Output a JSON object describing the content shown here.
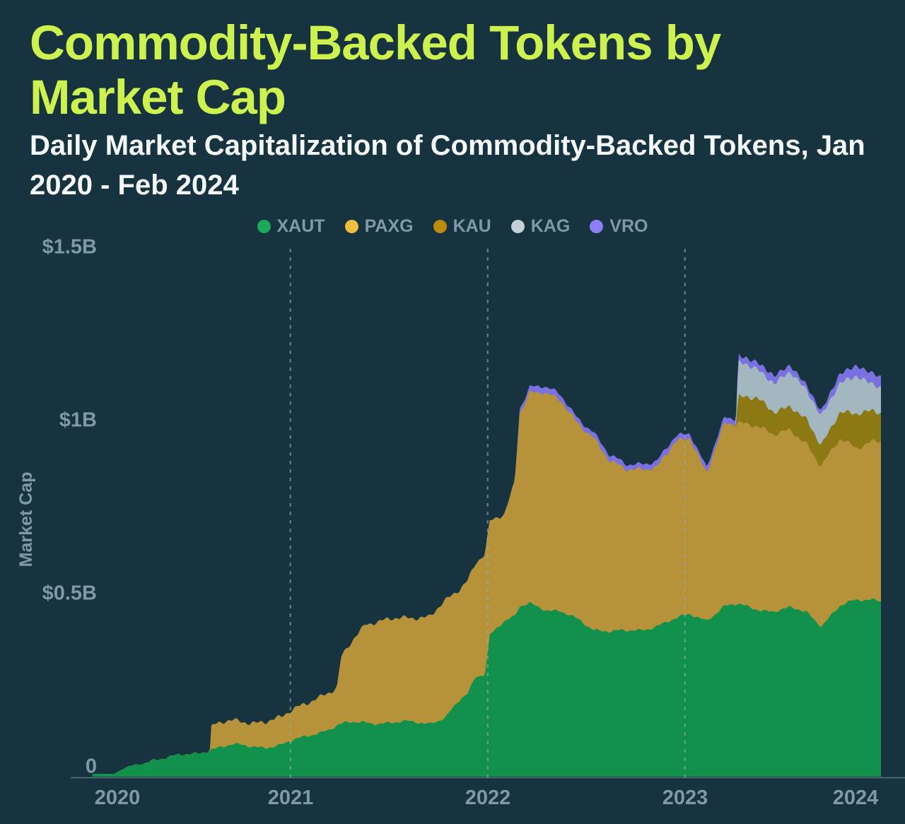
{
  "header": {
    "title": "Commodity-Backed Tokens by Market Cap",
    "subtitle": "Daily Market Capitalization of Commodity-Backed Tokens, Jan 2020 - Feb 2024",
    "title_color": "#cdf24f",
    "subtitle_color": "#f4f8f9"
  },
  "page": {
    "background": "#16333f",
    "axis_text_color": "#8199a5",
    "axis_line_color": "#5d737e",
    "gridline_color": "#9aaab2"
  },
  "chart_data": {
    "type": "area",
    "stacked": true,
    "title": "Commodity-Backed Tokens by Market Cap",
    "subtitle": "Daily Market Capitalization of Commodity-Backed Tokens, Jan 2020 - Feb 2024",
    "xlabel": "",
    "ylabel": "Market Cap",
    "ylim": [
      0,
      1500
    ],
    "x_range": [
      "2020-01-01",
      "2024-02-29"
    ],
    "grid": "vertical-dashed",
    "gridline_years": [
      2021,
      2022,
      2023
    ],
    "legend_position": "top",
    "y_ticks": [
      {
        "label": "$1.5B",
        "value": 1500
      },
      {
        "label": "$1B",
        "value": 1000
      },
      {
        "label": "$0.5B",
        "value": 500
      },
      {
        "label": "0",
        "value": 0
      }
    ],
    "x_ticks": [
      {
        "label": "2020",
        "year": 2020
      },
      {
        "label": "2021",
        "year": 2021
      },
      {
        "label": "2022",
        "year": 2022
      },
      {
        "label": "2023",
        "year": 2023
      },
      {
        "label": "2024",
        "year": 2024
      }
    ],
    "series": [
      {
        "name": "XAUT",
        "color": "#11914b",
        "legend_color": "#1ca95a"
      },
      {
        "name": "PAXG",
        "color": "#b6933a",
        "legend_color": "#edbe40"
      },
      {
        "name": "KAU",
        "color": "#8c7913",
        "legend_color": "#bb8d0e"
      },
      {
        "name": "KAG",
        "color": "#a3b7c0",
        "legend_color": "#c2d2d8"
      },
      {
        "name": "VRO",
        "color": "#7a70e0",
        "legend_color": "#8d80f5"
      }
    ],
    "values_unit": "USD millions",
    "values_order": [
      "XAUT",
      "PAXG",
      "KAU",
      "KAG",
      "VRO"
    ],
    "points": [
      {
        "date": "2020-01-01",
        "values": [
          0,
          0,
          0,
          0,
          0
        ]
      },
      {
        "date": "2020-02-10",
        "values": [
          0,
          0,
          0,
          0,
          0
        ]
      },
      {
        "date": "2020-03-01",
        "values": [
          16,
          0,
          0,
          0,
          0
        ]
      },
      {
        "date": "2020-04-01",
        "values": [
          30,
          0,
          0,
          0,
          0
        ]
      },
      {
        "date": "2020-04-20",
        "values": [
          42,
          0,
          0,
          0,
          0
        ]
      },
      {
        "date": "2020-05-15",
        "values": [
          47,
          0,
          0,
          0,
          0
        ]
      },
      {
        "date": "2020-06-15",
        "values": [
          52,
          0,
          0,
          0,
          0
        ]
      },
      {
        "date": "2020-07-15",
        "values": [
          60,
          0,
          0,
          0,
          0
        ]
      },
      {
        "date": "2020-08-05",
        "values": [
          72,
          0,
          0,
          0,
          0
        ]
      },
      {
        "date": "2020-08-08",
        "values": [
          74,
          65,
          0,
          0,
          0
        ]
      },
      {
        "date": "2020-09-15",
        "values": [
          82,
          70,
          0,
          0,
          0
        ]
      },
      {
        "date": "2020-10-15",
        "values": [
          80,
          70,
          0,
          0,
          0
        ]
      },
      {
        "date": "2020-11-15",
        "values": [
          79,
          72,
          0,
          0,
          0
        ]
      },
      {
        "date": "2020-12-15",
        "values": [
          82,
          78,
          0,
          0,
          0
        ]
      },
      {
        "date": "2021-01-15",
        "values": [
          100,
          95,
          0,
          0,
          0
        ]
      },
      {
        "date": "2021-02-15",
        "values": [
          118,
          100,
          0,
          0,
          0
        ]
      },
      {
        "date": "2021-03-15",
        "values": [
          130,
          103,
          0,
          0,
          0
        ]
      },
      {
        "date": "2021-03-28",
        "values": [
          138,
          105,
          0,
          0,
          0
        ]
      },
      {
        "date": "2021-04-05",
        "values": [
          142,
          192,
          0,
          0,
          0
        ]
      },
      {
        "date": "2021-05-01",
        "values": [
          148,
          250,
          0,
          0,
          0
        ]
      },
      {
        "date": "2021-05-20",
        "values": [
          150,
          285,
          0,
          0,
          0
        ]
      },
      {
        "date": "2021-06-15",
        "values": [
          148,
          292,
          0,
          0,
          0
        ]
      },
      {
        "date": "2021-07-15",
        "values": [
          146,
          300,
          0,
          0,
          0
        ]
      },
      {
        "date": "2021-08-15",
        "values": [
          150,
          302,
          0,
          0,
          0
        ]
      },
      {
        "date": "2021-09-15",
        "values": [
          148,
          308,
          0,
          0,
          0
        ]
      },
      {
        "date": "2021-10-15",
        "values": [
          162,
          335,
          0,
          0,
          0
        ]
      },
      {
        "date": "2021-11-10",
        "values": [
          210,
          320,
          0,
          0,
          0
        ]
      },
      {
        "date": "2021-11-25",
        "values": [
          230,
          330,
          0,
          0,
          0
        ]
      },
      {
        "date": "2021-12-10",
        "values": [
          282,
          332,
          0,
          0,
          0
        ]
      },
      {
        "date": "2021-12-27",
        "values": [
          292,
          345,
          0,
          0,
          0
        ]
      },
      {
        "date": "2022-01-05",
        "values": [
          405,
          325,
          0,
          0,
          0
        ]
      },
      {
        "date": "2022-02-01",
        "values": [
          440,
          305,
          0,
          0,
          0
        ]
      },
      {
        "date": "2022-02-20",
        "values": [
          450,
          390,
          0,
          0,
          0
        ]
      },
      {
        "date": "2022-03-01",
        "values": [
          480,
          560,
          0,
          0,
          16
        ]
      },
      {
        "date": "2022-03-20",
        "values": [
          495,
          610,
          0,
          0,
          18
        ]
      },
      {
        "date": "2022-04-15",
        "values": [
          478,
          625,
          0,
          0,
          17
        ]
      },
      {
        "date": "2022-05-15",
        "values": [
          467,
          608,
          0,
          0,
          16
        ]
      },
      {
        "date": "2022-06-15",
        "values": [
          446,
          570,
          0,
          0,
          16
        ]
      },
      {
        "date": "2022-07-15",
        "values": [
          420,
          555,
          0,
          0,
          16
        ]
      },
      {
        "date": "2022-08-15",
        "values": [
          412,
          487,
          0,
          0,
          16
        ]
      },
      {
        "date": "2022-09-15",
        "values": [
          410,
          468,
          0,
          0,
          16
        ]
      },
      {
        "date": "2022-10-15",
        "values": [
          416,
          468,
          0,
          0,
          16
        ]
      },
      {
        "date": "2022-11-10",
        "values": [
          430,
          455,
          0,
          0,
          16
        ]
      },
      {
        "date": "2022-12-15",
        "values": [
          446,
          510,
          0,
          0,
          16
        ]
      },
      {
        "date": "2023-01-10",
        "values": [
          460,
          512,
          0,
          0,
          16
        ]
      },
      {
        "date": "2023-02-10",
        "values": [
          446,
          425,
          0,
          0,
          16
        ]
      },
      {
        "date": "2023-03-15",
        "values": [
          483,
          525,
          0,
          0,
          16
        ]
      },
      {
        "date": "2023-04-05",
        "values": [
          487,
          520,
          0,
          0,
          16
        ]
      },
      {
        "date": "2023-04-10",
        "values": [
          487,
          527,
          75,
          97,
          20
        ]
      },
      {
        "date": "2023-05-15",
        "values": [
          477,
          532,
          77,
          87,
          20
        ]
      },
      {
        "date": "2023-06-15",
        "values": [
          470,
          507,
          67,
          85,
          20
        ]
      },
      {
        "date": "2023-07-15",
        "values": [
          477,
          513,
          71,
          95,
          20
        ]
      },
      {
        "date": "2023-08-15",
        "values": [
          467,
          487,
          67,
          85,
          16
        ]
      },
      {
        "date": "2023-09-10",
        "values": [
          430,
          460,
          58,
          90,
          12
        ]
      },
      {
        "date": "2023-10-15",
        "values": [
          483,
          481,
          81,
          81,
          26
        ]
      },
      {
        "date": "2023-11-15",
        "values": [
          501,
          442,
          97,
          106,
          34
        ]
      },
      {
        "date": "2023-12-15",
        "values": [
          507,
          457,
          85,
          81,
          30
        ]
      },
      {
        "date": "2024-01-15",
        "values": [
          497,
          461,
          77,
          71,
          24
        ]
      },
      {
        "date": "2024-02-10",
        "values": [
          493,
          470,
          67,
          61,
          26
        ]
      },
      {
        "date": "2024-02-29",
        "values": [
          490,
          480,
          65,
          60,
          26
        ]
      }
    ]
  }
}
